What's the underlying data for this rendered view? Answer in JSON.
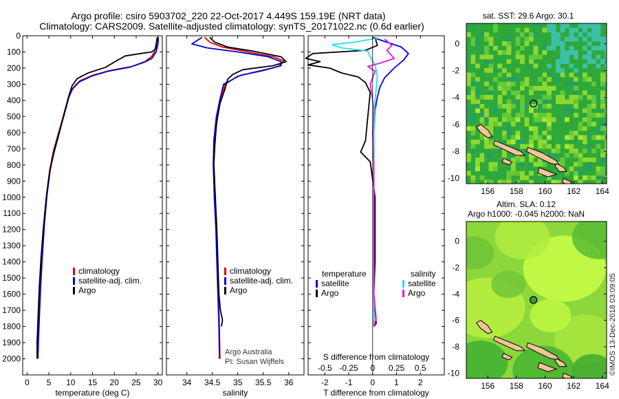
{
  "header": {
    "title_line1": "Argo profile: csiro 5903702_220 22-Oct-2017 4.449S 159.19E (NRT data)",
    "title_line2": "Climatology: CARS2009. Satellite-adjusted climatology: synTS_20171022.nc (0.6d earlier)"
  },
  "credits": {
    "line1": "Argo Australia",
    "line2": "PI: Susan Wijffels",
    "imos": "©IMOS 13-Dec-2018 03:09:05"
  },
  "colors": {
    "climatology": "#e00000",
    "satellite": "#0000e0",
    "argo": "#000000",
    "sal_satellite": "#22e0e8",
    "sal_argo": "#ee10ee",
    "land": "#f2c49a",
    "map_low": "#20a020",
    "map_high": "#c8ff40"
  },
  "chart_data": [
    {
      "type": "line",
      "id": "temperature",
      "xlabel": "temperature (deg C)",
      "ylabel": "",
      "xlim": [
        -1,
        31
      ],
      "ylim": [
        2100,
        0
      ],
      "xticks": [
        0,
        5,
        10,
        15,
        20,
        25,
        30
      ],
      "yticks": [
        0,
        100,
        200,
        300,
        400,
        500,
        600,
        700,
        800,
        900,
        1000,
        1100,
        1200,
        1300,
        1400,
        1500,
        1600,
        1700,
        1800,
        1900,
        2000
      ],
      "legend": [
        "climatology",
        "satellite-adj. clim.",
        "Argo"
      ],
      "series": [
        {
          "name": "climatology",
          "color": "#e00000",
          "points": [
            [
              29.8,
              10
            ],
            [
              29.6,
              50
            ],
            [
              29.2,
              100
            ],
            [
              28.5,
              130
            ],
            [
              27,
              160
            ],
            [
              24,
              190
            ],
            [
              19,
              215
            ],
            [
              15,
              245
            ],
            [
              12,
              280
            ],
            [
              10.3,
              330
            ],
            [
              9.5,
              380
            ],
            [
              8.3,
              500
            ],
            [
              7,
              620
            ],
            [
              6,
              720
            ],
            [
              5.2,
              830
            ],
            [
              4.5,
              980
            ],
            [
              3.9,
              1160
            ],
            [
              3.4,
              1370
            ],
            [
              3.0,
              1560
            ],
            [
              2.7,
              1760
            ],
            [
              2.5,
              1900
            ],
            [
              2.4,
              2000
            ]
          ]
        },
        {
          "name": "satellite-adj. clim.",
          "color": "#0000e0",
          "points": [
            [
              30.1,
              10
            ],
            [
              30.0,
              50
            ],
            [
              29.6,
              100
            ],
            [
              28.6,
              140
            ],
            [
              26.8,
              165
            ],
            [
              23.5,
              195
            ],
            [
              18.5,
              220
            ],
            [
              14.8,
              250
            ],
            [
              12,
              285
            ],
            [
              10.4,
              330
            ],
            [
              9.6,
              380
            ],
            [
              8.4,
              500
            ],
            [
              7.1,
              620
            ],
            [
              6.1,
              720
            ],
            [
              5.3,
              830
            ],
            [
              4.6,
              980
            ],
            [
              4.0,
              1160
            ],
            [
              3.5,
              1370
            ],
            [
              3.1,
              1560
            ],
            [
              2.8,
              1760
            ],
            [
              2.6,
              1900
            ],
            [
              2.5,
              2000
            ]
          ]
        },
        {
          "name": "Argo",
          "color": "#000000",
          "points": [
            [
              29.9,
              10
            ],
            [
              29.7,
              40
            ],
            [
              29.5,
              80
            ],
            [
              28.6,
              100
            ],
            [
              26,
              110
            ],
            [
              22.5,
              125
            ],
            [
              20.5,
              155
            ],
            [
              18,
              195
            ],
            [
              14,
              230
            ],
            [
              11.5,
              265
            ],
            [
              10.3,
              310
            ],
            [
              9.6,
              370
            ],
            [
              8.6,
              470
            ],
            [
              7.4,
              600
            ],
            [
              6.2,
              720
            ],
            [
              5.2,
              840
            ],
            [
              4.4,
              1000
            ],
            [
              3.7,
              1200
            ],
            [
              3.2,
              1380
            ],
            [
              2.8,
              1560
            ],
            [
              2.5,
              1760
            ],
            [
              2.3,
              1900
            ],
            [
              2.3,
              2000
            ]
          ]
        }
      ]
    },
    {
      "type": "line",
      "id": "salinity",
      "xlabel": "salinity",
      "ylabel": "",
      "xlim": [
        33.6,
        36.3
      ],
      "ylim": [
        2100,
        0
      ],
      "xticks": [
        34,
        34.5,
        35,
        35.5,
        36
      ],
      "legend": [
        "climatology",
        "satellite-adj. clim.",
        "Argo"
      ],
      "series": [
        {
          "name": "climatology",
          "color": "#e00000",
          "points": [
            [
              34.35,
              10
            ],
            [
              34.45,
              40
            ],
            [
              34.7,
              70
            ],
            [
              35.2,
              100
            ],
            [
              35.7,
              130
            ],
            [
              35.9,
              155
            ],
            [
              35.8,
              190
            ],
            [
              35.4,
              220
            ],
            [
              35.0,
              250
            ],
            [
              34.75,
              300
            ],
            [
              34.68,
              380
            ],
            [
              34.6,
              500
            ],
            [
              34.55,
              650
            ],
            [
              34.53,
              800
            ],
            [
              34.55,
              1000
            ],
            [
              34.58,
              1200
            ],
            [
              34.6,
              1400
            ],
            [
              34.62,
              1600
            ],
            [
              34.64,
              1800
            ],
            [
              34.65,
              2000
            ]
          ]
        },
        {
          "name": "satellite-adj. clim.",
          "color": "#0000e0",
          "points": [
            [
              34.3,
              10
            ],
            [
              34.1,
              50
            ],
            [
              34.4,
              75
            ],
            [
              35.0,
              100
            ],
            [
              35.6,
              130
            ],
            [
              35.85,
              160
            ],
            [
              35.85,
              185
            ],
            [
              35.5,
              215
            ],
            [
              35.05,
              245
            ],
            [
              34.72,
              300
            ],
            [
              34.66,
              380
            ],
            [
              34.58,
              500
            ],
            [
              34.53,
              650
            ],
            [
              34.52,
              800
            ],
            [
              34.54,
              1000
            ],
            [
              34.57,
              1200
            ],
            [
              34.59,
              1400
            ],
            [
              34.61,
              1600
            ],
            [
              34.63,
              1800
            ],
            [
              34.64,
              2000
            ]
          ]
        },
        {
          "name": "Argo",
          "color": "#000000",
          "points": [
            [
              34.45,
              10
            ],
            [
              34.55,
              40
            ],
            [
              34.8,
              70
            ],
            [
              35.3,
              95
            ],
            [
              35.85,
              130
            ],
            [
              35.95,
              160
            ],
            [
              35.7,
              185
            ],
            [
              35.1,
              210
            ],
            [
              34.9,
              240
            ],
            [
              34.8,
              270
            ],
            [
              34.75,
              330
            ],
            [
              34.65,
              420
            ],
            [
              34.58,
              550
            ],
            [
              34.55,
              680
            ],
            [
              34.53,
              790
            ],
            [
              34.56,
              1000
            ],
            [
              34.59,
              1200
            ],
            [
              34.61,
              1400
            ],
            [
              34.63,
              1600
            ],
            [
              34.66,
              1700
            ],
            [
              34.7,
              1760
            ],
            [
              34.68,
              1800
            ]
          ]
        }
      ]
    },
    {
      "type": "line",
      "id": "difference",
      "xlabel": "T difference from climatology",
      "xlabel_top": "S difference from climatology",
      "ylabel": "",
      "xlim": [
        -2.7,
        3.0
      ],
      "ylim": [
        2100,
        0
      ],
      "xticks": [
        -2,
        -1,
        0,
        1,
        2
      ],
      "xticks_s": [
        "-0.5",
        "-0.25",
        "0",
        "0.25",
        "0.5"
      ],
      "legend_left_title": "temperature",
      "legend_right_title": "salinity",
      "legend_left": [
        "satellite",
        "Argo"
      ],
      "legend_right": [
        "satellite",
        "Argo"
      ],
      "series": [
        {
          "name": "T satellite",
          "color": "#0000e0",
          "points": [
            [
              0,
              10
            ],
            [
              0.6,
              40
            ],
            [
              1.2,
              70
            ],
            [
              1.5,
              110
            ],
            [
              1.3,
              150
            ],
            [
              0.9,
              200
            ],
            [
              0.5,
              260
            ],
            [
              0.3,
              320
            ],
            [
              0.2,
              380
            ],
            [
              0.1,
              460
            ],
            [
              0.05,
              600
            ],
            [
              0.05,
              800
            ],
            [
              0.05,
              1000
            ],
            [
              0.05,
              1400
            ],
            [
              0.05,
              1800
            ]
          ]
        },
        {
          "name": "T Argo",
          "color": "#000000",
          "points": [
            [
              0.1,
              10
            ],
            [
              0.2,
              60
            ],
            [
              -0.3,
              90
            ],
            [
              -2.5,
              110
            ],
            [
              -2.8,
              140
            ],
            [
              -2.2,
              160
            ],
            [
              -2.7,
              180
            ],
            [
              -1.8,
              200
            ],
            [
              -1.3,
              230
            ],
            [
              -0.6,
              255
            ],
            [
              -0.3,
              290
            ],
            [
              -0.1,
              350
            ],
            [
              -0.2,
              500
            ],
            [
              -0.3,
              650
            ],
            [
              -0.5,
              720
            ],
            [
              -0.1,
              780
            ],
            [
              0.1,
              1000
            ],
            [
              0.1,
              1200
            ],
            [
              0.1,
              1400
            ],
            [
              0.05,
              1600
            ],
            [
              0.15,
              1780
            ],
            [
              0.05,
              1800
            ]
          ]
        },
        {
          "name": "S satellite",
          "color": "#22e0e8",
          "points": [
            [
              0.2,
              15
            ],
            [
              -0.8,
              40
            ],
            [
              -1.7,
              55
            ],
            [
              -1.3,
              75
            ],
            [
              -0.7,
              85
            ],
            [
              -0.2,
              95
            ],
            [
              -0.1,
              130
            ],
            [
              0.1,
              180
            ],
            [
              0.2,
              250
            ],
            [
              0.1,
              400
            ],
            [
              0.05,
              600
            ],
            [
              0.05,
              900
            ],
            [
              0.05,
              1200
            ],
            [
              0.05,
              1500
            ],
            [
              0.05,
              1800
            ]
          ]
        },
        {
          "name": "S Argo",
          "color": "#ee10ee",
          "points": [
            [
              0.5,
              20
            ],
            [
              0.8,
              60
            ],
            [
              0.6,
              90
            ],
            [
              0.9,
              140
            ],
            [
              0.3,
              170
            ],
            [
              -0.2,
              190
            ],
            [
              0.1,
              220
            ],
            [
              -0.1,
              300
            ],
            [
              0.05,
              450
            ],
            [
              0.0,
              600
            ],
            [
              0.05,
              800
            ],
            [
              0.05,
              1000
            ],
            [
              0.05,
              1300
            ],
            [
              0.05,
              1600
            ],
            [
              0.15,
              1750
            ],
            [
              0.05,
              1800
            ]
          ]
        }
      ]
    },
    {
      "type": "heatmap",
      "id": "sst_map",
      "title": "sat. SST: 29.6 Argo: 30.1",
      "xlim": [
        154.5,
        164.3
      ],
      "ylim": [
        -10.4,
        1.5
      ],
      "xticks": [
        156,
        158,
        160,
        162,
        164
      ],
      "yticks": [
        0,
        -2,
        -4,
        -6,
        -8,
        -10
      ],
      "marker": [
        159.19,
        -4.449
      ]
    },
    {
      "type": "heatmap",
      "id": "sla_map",
      "title_line1": "Altim. SLA: 0.12",
      "title_line2": "Argo h1000: -0.045 h2000: NaN",
      "xlim": [
        154.5,
        164.3
      ],
      "ylim": [
        -10.4,
        1.5
      ],
      "xticks": [
        156,
        158,
        160,
        162,
        164
      ],
      "yticks": [
        0,
        -2,
        -4,
        -6,
        -8,
        -10
      ],
      "marker": [
        159.19,
        -4.449
      ]
    }
  ]
}
